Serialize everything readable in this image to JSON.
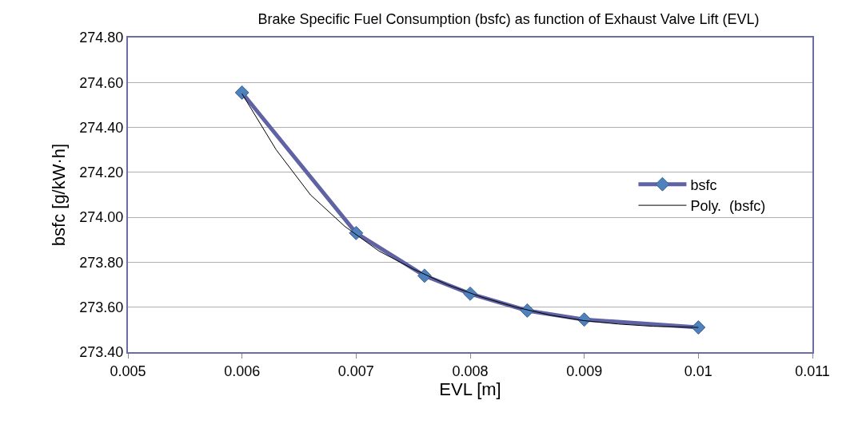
{
  "chart_data": {
    "type": "line",
    "title": "Brake Specific Fuel Consumption (bsfc) as function of Exhaust Valve Lift (EVL)",
    "xlabel": "EVL [m]",
    "ylabel": "bsfc [g/kW·h]",
    "x": [
      0.006,
      0.007,
      0.0076,
      0.008,
      0.0085,
      0.009,
      0.01
    ],
    "series": [
      {
        "name": "bsfc",
        "color": "#5f62a3",
        "marker": "diamond",
        "line_style": "solid",
        "values": [
          274.555,
          273.93,
          273.74,
          273.66,
          273.585,
          273.545,
          273.51
        ]
      },
      {
        "name": "Poly.  (bsfc)",
        "color": "#000000",
        "marker": "none",
        "line_style": "solid",
        "x": [
          0.006,
          0.0063,
          0.0066,
          0.0069,
          0.0072,
          0.0075,
          0.0078,
          0.0081,
          0.0084,
          0.0087,
          0.009,
          0.0093,
          0.0096,
          0.01
        ],
        "values": [
          274.55,
          274.3,
          274.1,
          273.96,
          273.85,
          273.77,
          273.7,
          273.645,
          273.6,
          273.565,
          273.54,
          273.525,
          273.515,
          273.51
        ]
      }
    ],
    "xlim": [
      0.005,
      0.011
    ],
    "xticks": [
      0.005,
      0.006,
      0.007,
      0.008,
      0.009,
      0.01,
      0.011
    ],
    "ylim": [
      273.4,
      274.8
    ],
    "yticks": [
      {
        "value": 273.4,
        "label": "273.40"
      },
      {
        "value": 273.6,
        "label": "273.60"
      },
      {
        "value": 273.8,
        "label": "273.80"
      },
      {
        "value": 274.0,
        "label": "274.00"
      },
      {
        "value": 274.2,
        "label": "274.20"
      },
      {
        "value": 274.4,
        "label": "274.40"
      },
      {
        "value": 274.6,
        "label": "274.60"
      },
      {
        "value": 274.8,
        "label": "274.80"
      }
    ],
    "grid": "y",
    "legend": "right"
  }
}
